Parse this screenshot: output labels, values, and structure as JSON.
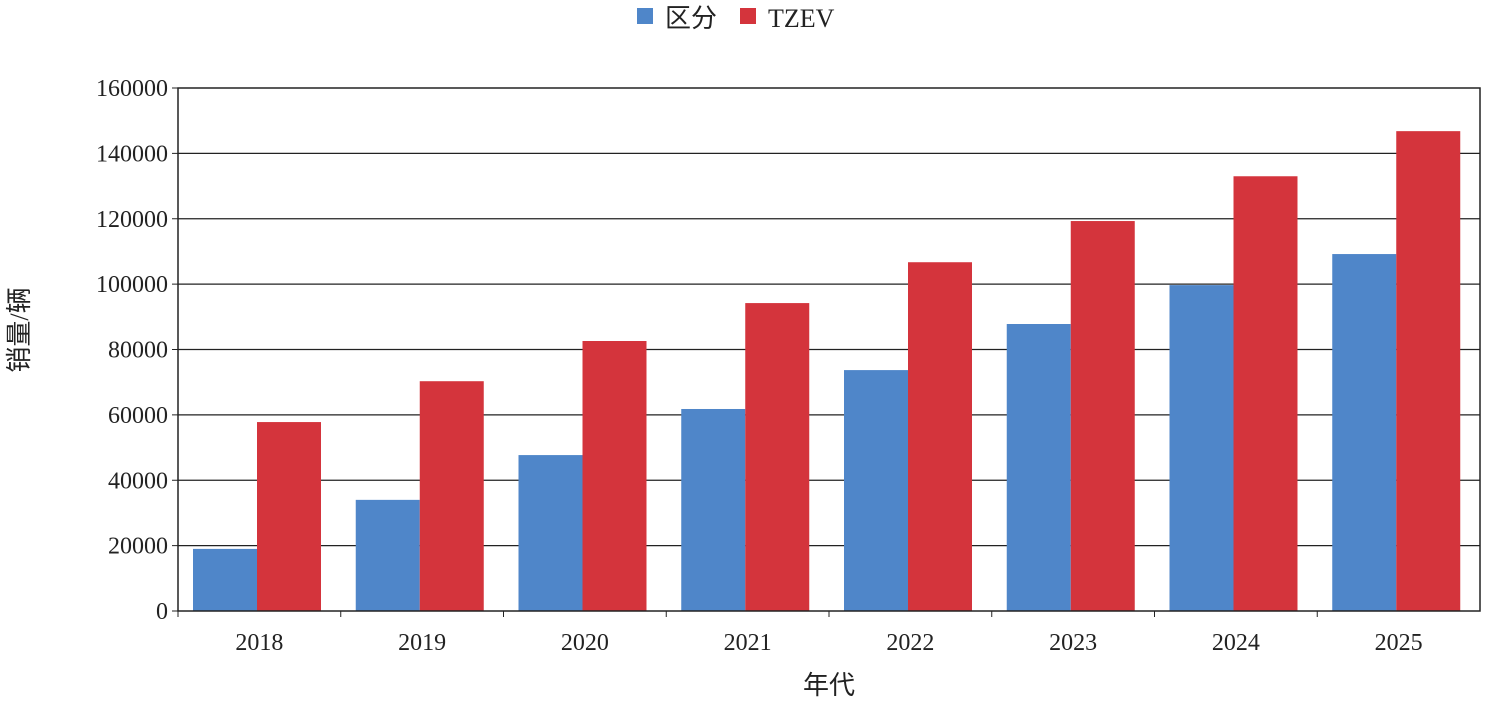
{
  "chart_data": {
    "type": "bar",
    "title": "",
    "xlabel": "年代",
    "ylabel": "销量/辆",
    "ylim": [
      0,
      160000
    ],
    "yticks": [
      "0",
      "20000",
      "40000",
      "60000",
      "80000",
      "100000",
      "120000",
      "140000",
      "160000"
    ],
    "grid": true,
    "legend_position": "top-center",
    "categories": [
      "2018",
      "2019",
      "2020",
      "2021",
      "2022",
      "2023",
      "2024",
      "2025"
    ],
    "series": [
      {
        "name": "区分",
        "color": "#4f86c9",
        "values": [
          19000,
          34000,
          47700,
          61800,
          73700,
          87800,
          99700,
          109200
        ]
      },
      {
        "name": "TZEV",
        "color": "#d4343c",
        "values": [
          57800,
          70300,
          82600,
          94200,
          106700,
          119300,
          133000,
          146800
        ]
      }
    ]
  }
}
